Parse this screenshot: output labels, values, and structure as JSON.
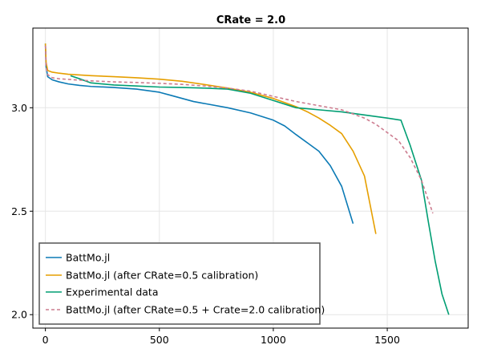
{
  "chart_data": {
    "type": "line",
    "title": "CRate = 2.0",
    "xlabel": "",
    "ylabel": "",
    "xlim": [
      -55,
      1855
    ],
    "ylim": [
      1.935,
      3.385
    ],
    "xticks": [
      0,
      500,
      1000,
      1500
    ],
    "xtick_labels": [
      "0",
      "500",
      "1000",
      "1500"
    ],
    "yticks": [
      2.0,
      2.5,
      3.0
    ],
    "ytick_labels": [
      "2.0",
      "2.5",
      "3.0"
    ],
    "grid": true,
    "legend_position": "bottom-left",
    "series": [
      {
        "name": "BattMo.jl",
        "color": "#0b7ab5",
        "dash": "solid",
        "x": [
          0,
          3,
          10,
          30,
          60,
          100,
          150,
          200,
          300,
          400,
          500,
          550,
          600,
          650,
          700,
          800,
          900,
          1000,
          1050,
          1100,
          1150,
          1200,
          1250,
          1300,
          1350
        ],
        "y": [
          3.31,
          3.2,
          3.15,
          3.135,
          3.125,
          3.115,
          3.108,
          3.103,
          3.098,
          3.09,
          3.075,
          3.06,
          3.045,
          3.03,
          3.02,
          3.0,
          2.975,
          2.94,
          2.912,
          2.87,
          2.83,
          2.79,
          2.72,
          2.62,
          2.44
        ]
      },
      {
        "name": "BattMo.jl (after CRate=0.5 calibration)",
        "color": "#e69f00",
        "dash": "solid",
        "x": [
          0,
          3,
          10,
          30,
          60,
          100,
          200,
          300,
          400,
          500,
          600,
          700,
          800,
          900,
          1000,
          1100,
          1150,
          1200,
          1250,
          1300,
          1350,
          1400,
          1450
        ],
        "y": [
          3.31,
          3.22,
          3.18,
          3.172,
          3.167,
          3.162,
          3.155,
          3.15,
          3.145,
          3.138,
          3.128,
          3.112,
          3.095,
          3.075,
          3.045,
          3.005,
          2.98,
          2.95,
          2.915,
          2.875,
          2.79,
          2.67,
          2.39
        ]
      },
      {
        "name": "Experimental data",
        "color": "#009e73",
        "dash": "solid",
        "x": [
          110,
          150,
          200,
          300,
          400,
          500,
          600,
          700,
          800,
          900,
          1000,
          1100,
          1200,
          1300,
          1400,
          1500,
          1560,
          1600,
          1650,
          1680,
          1710,
          1740,
          1770
        ],
        "y": [
          3.155,
          3.14,
          3.12,
          3.11,
          3.105,
          3.1,
          3.098,
          3.095,
          3.09,
          3.07,
          3.035,
          3.0,
          2.99,
          2.98,
          2.965,
          2.95,
          2.94,
          2.82,
          2.65,
          2.45,
          2.26,
          2.1,
          2.0
        ]
      },
      {
        "name": "BattMo.jl (after CRate=0.5 + Crate=2.0 calibration)",
        "color": "#cc7b8e",
        "dash": "dashed",
        "x": [
          0,
          3,
          10,
          30,
          60,
          100,
          200,
          300,
          400,
          500,
          600,
          700,
          800,
          900,
          1000,
          1100,
          1200,
          1300,
          1400,
          1450,
          1500,
          1550,
          1600,
          1650,
          1700
        ],
        "y": [
          3.3,
          3.2,
          3.16,
          3.145,
          3.14,
          3.137,
          3.13,
          3.125,
          3.122,
          3.118,
          3.113,
          3.105,
          3.095,
          3.08,
          3.055,
          3.03,
          3.01,
          2.99,
          2.95,
          2.92,
          2.88,
          2.84,
          2.76,
          2.65,
          2.49
        ]
      }
    ]
  }
}
